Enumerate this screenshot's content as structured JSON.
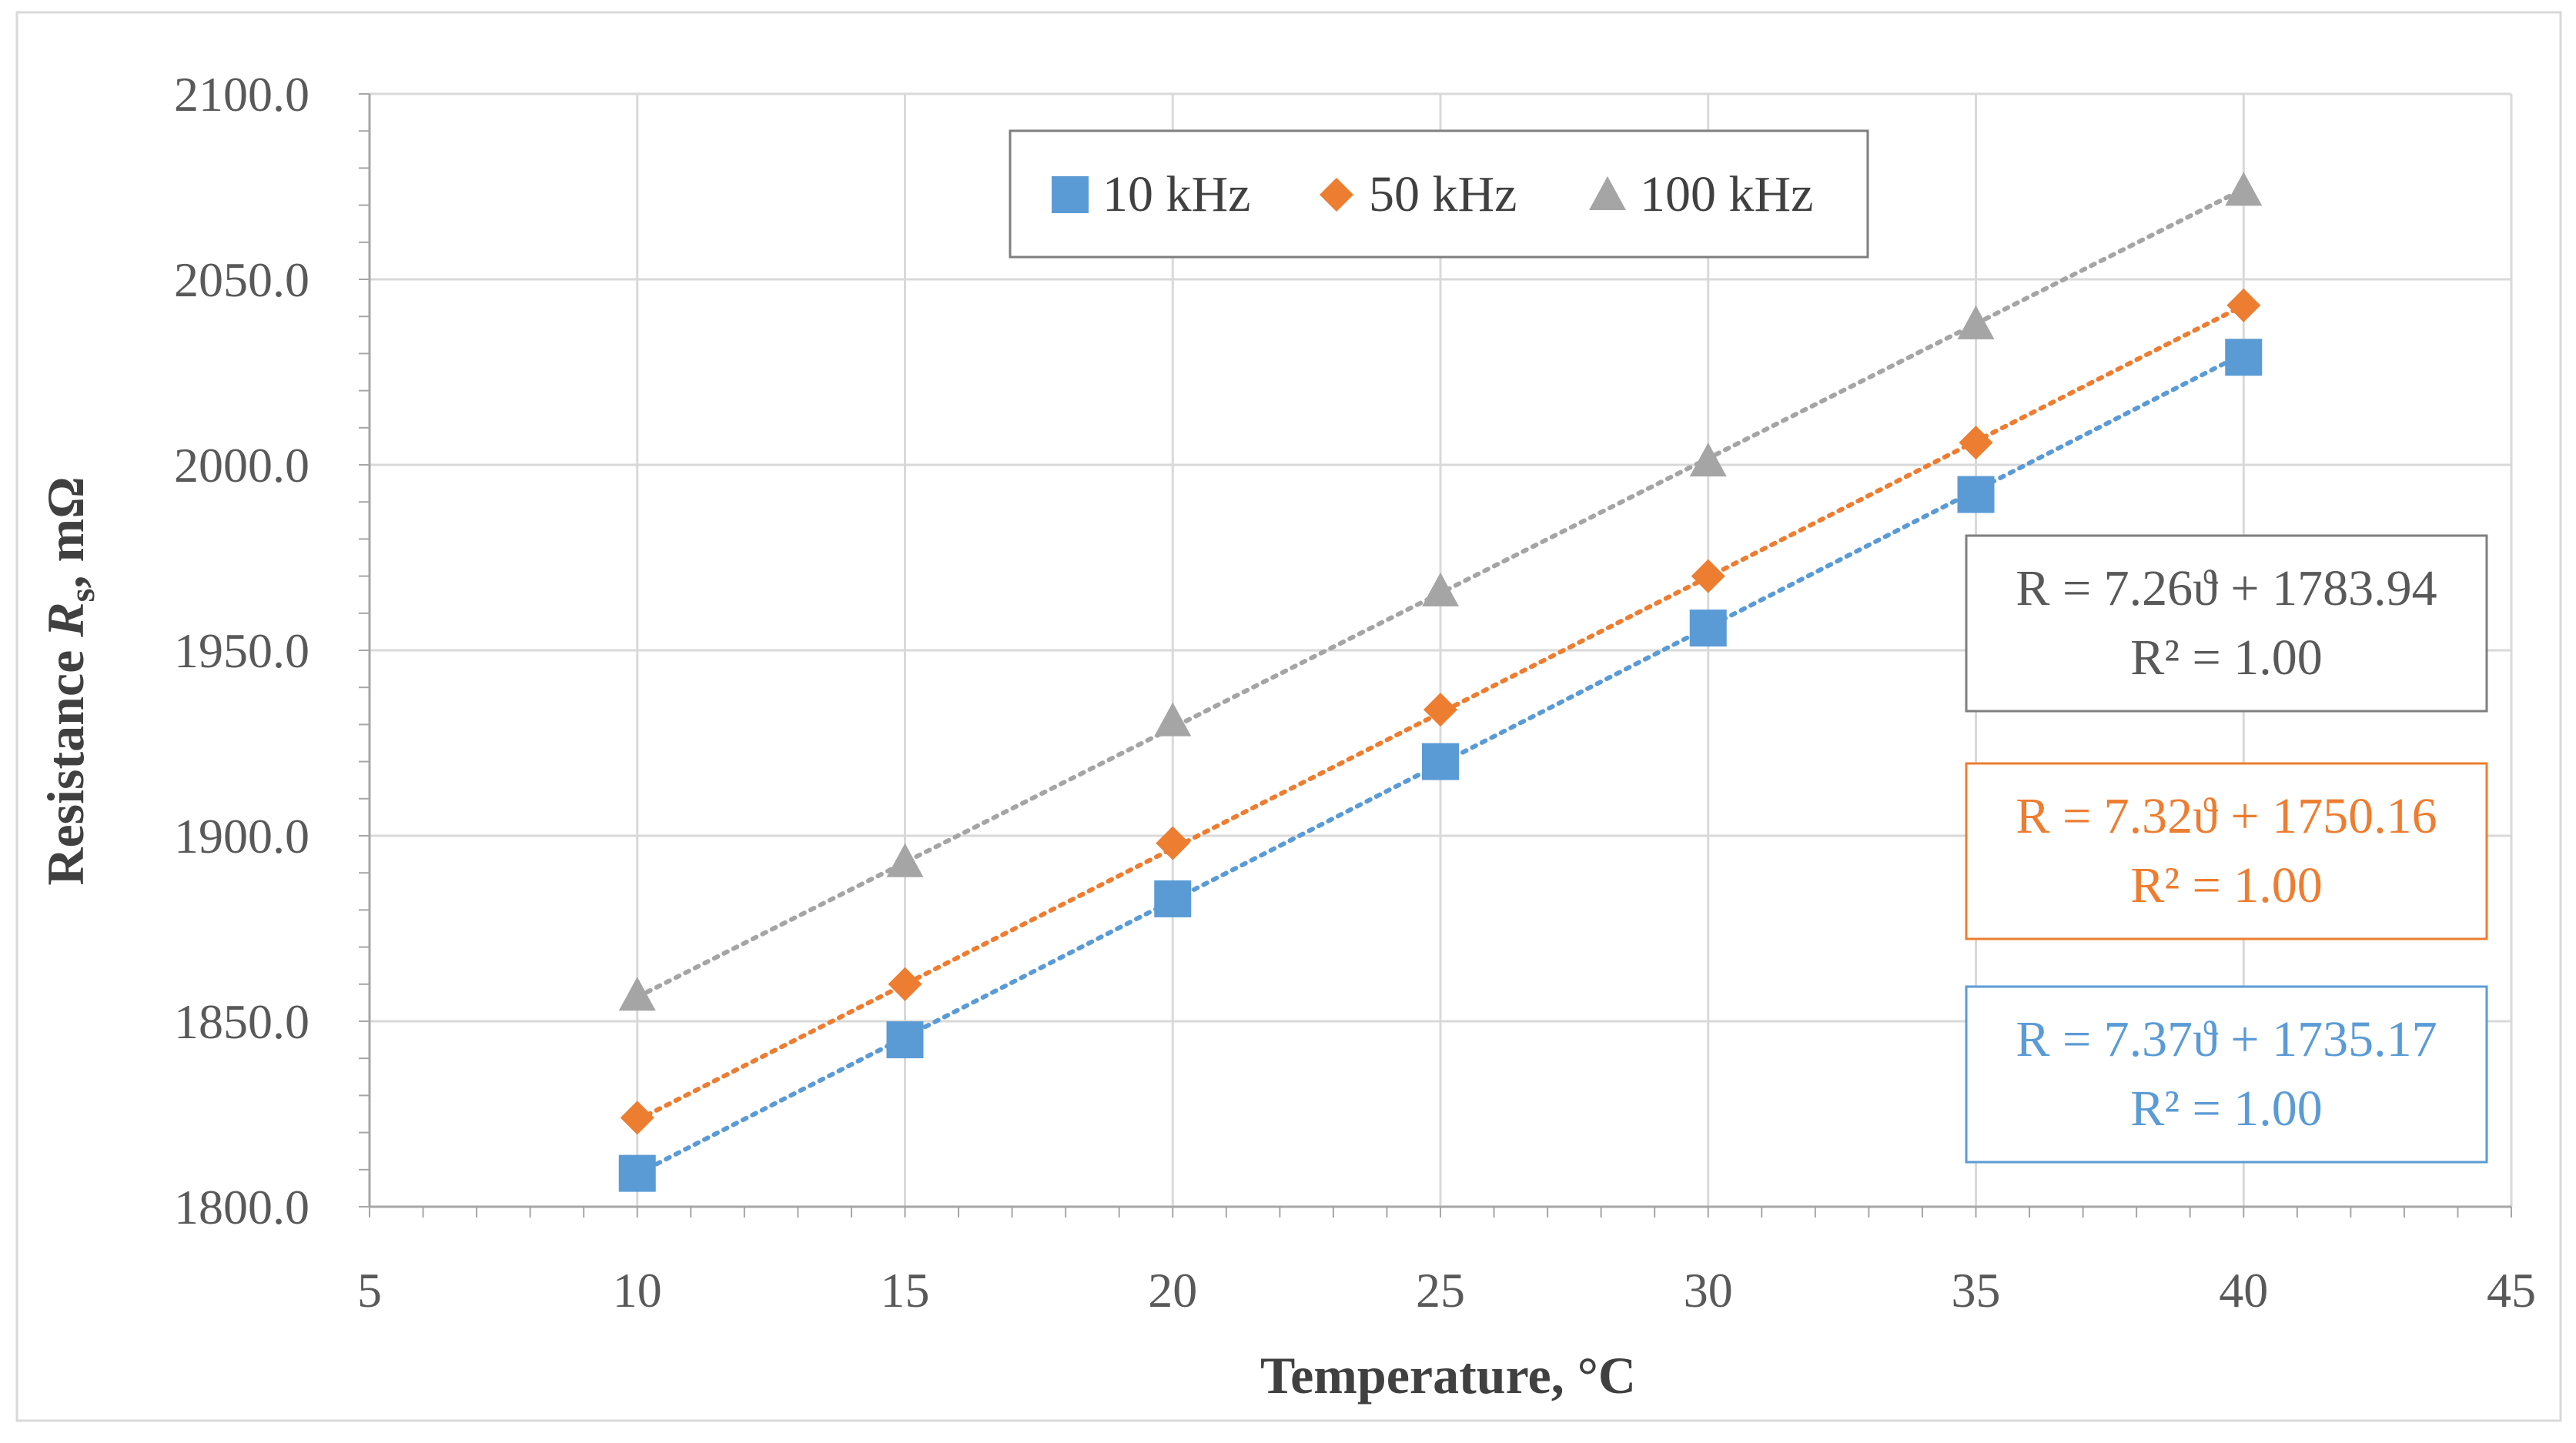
{
  "chart_data": {
    "type": "scatter",
    "title": "",
    "xlabel": "Temperature, °C",
    "ylabel": {
      "prefix": "Resistance  ",
      "symbol": "R",
      "subscript": "s",
      "suffix": ", mΩ"
    },
    "xlim": [
      5,
      45
    ],
    "ylim": [
      1800,
      2100
    ],
    "x_ticks": [
      "5",
      "10",
      "15",
      "20",
      "25",
      "30",
      "35",
      "40",
      "45"
    ],
    "y_ticks": [
      "1800.0",
      "1850.0",
      "1900.0",
      "1950.0",
      "2000.0",
      "2050.0",
      "2100.0"
    ],
    "grid": true,
    "legend_position": "top-center",
    "x": [
      10,
      15,
      20,
      25,
      30,
      35,
      40
    ],
    "series": [
      {
        "name": "10 kHz",
        "marker": "square",
        "color": "#5b9bd5",
        "values": [
          1809,
          1845,
          1883,
          1920,
          1956,
          1992,
          2029
        ],
        "trendline": {
          "slope": 7.37,
          "intercept": 1735.17,
          "line1": "R = 7.37ϑ + 1735.17",
          "line2": "R² = 1.00"
        }
      },
      {
        "name": "50 kHz",
        "marker": "diamond",
        "color": "#ed7d31",
        "values": [
          1824,
          1860,
          1898,
          1934,
          1970,
          2006,
          2043
        ],
        "trendline": {
          "slope": 7.32,
          "intercept": 1750.16,
          "line1": "R = 7.32ϑ + 1750.16",
          "line2": "R² = 1.00"
        }
      },
      {
        "name": "100 kHz",
        "marker": "triangle",
        "color": "#a5a5a5",
        "values": [
          1857,
          1893,
          1931,
          1966,
          2001,
          2038,
          2074
        ],
        "trendline": {
          "slope": 7.26,
          "intercept": 1783.94,
          "line1": "R = 7.26ϑ + 1783.94",
          "line2": "R² = 1.00"
        }
      }
    ],
    "equation_order": [
      "100 kHz",
      "50 kHz",
      "10 kHz"
    ],
    "equation_colors": [
      "#595959",
      "#ed7d31",
      "#5b9bd5"
    ],
    "border_colors": [
      "#7f7f7f",
      "#ed7d31",
      "#5b9bd5"
    ]
  }
}
